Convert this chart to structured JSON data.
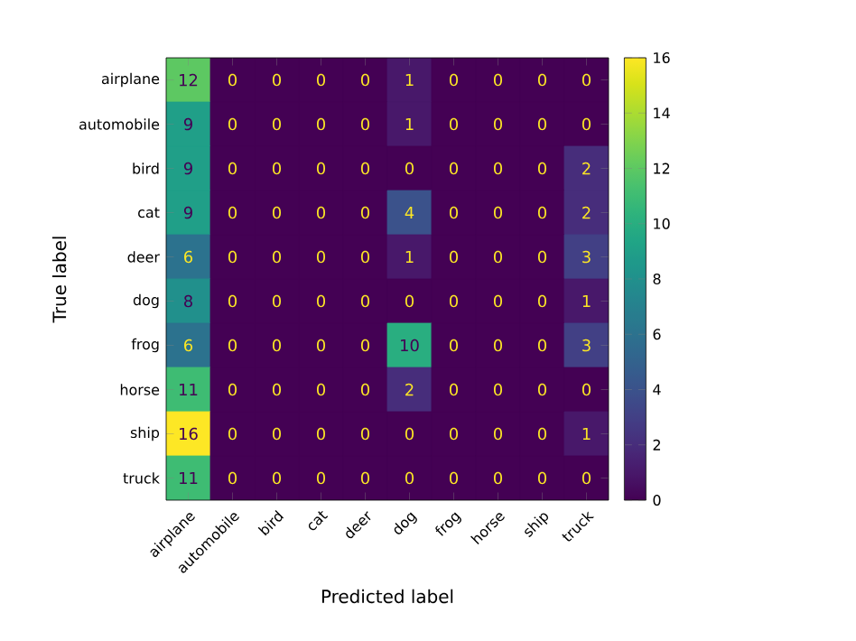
{
  "chart_data": {
    "type": "heatmap",
    "xlabel": "Predicted label",
    "ylabel": "True label",
    "categories": [
      "airplane",
      "automobile",
      "bird",
      "cat",
      "deer",
      "dog",
      "frog",
      "horse",
      "ship",
      "truck"
    ],
    "y_categories": [
      "airplane",
      "automobile",
      "bird",
      "cat",
      "deer",
      "dog",
      "frog",
      "horse",
      "ship",
      "truck"
    ],
    "cells": [
      [
        12,
        0,
        0,
        0,
        0,
        1,
        0,
        0,
        0,
        0
      ],
      [
        9,
        0,
        0,
        0,
        0,
        1,
        0,
        0,
        0,
        0
      ],
      [
        9,
        0,
        0,
        0,
        0,
        0,
        0,
        0,
        0,
        2
      ],
      [
        9,
        0,
        0,
        0,
        0,
        4,
        0,
        0,
        0,
        2
      ],
      [
        6,
        0,
        0,
        0,
        0,
        1,
        0,
        0,
        0,
        3
      ],
      [
        8,
        0,
        0,
        0,
        0,
        0,
        0,
        0,
        0,
        1
      ],
      [
        6,
        0,
        0,
        0,
        0,
        10,
        0,
        0,
        0,
        3
      ],
      [
        11,
        0,
        0,
        0,
        0,
        2,
        0,
        0,
        0,
        0
      ],
      [
        16,
        0,
        0,
        0,
        0,
        0,
        0,
        0,
        0,
        1
      ],
      [
        11,
        0,
        0,
        0,
        0,
        0,
        0,
        0,
        0,
        0
      ]
    ],
    "clim": [
      0,
      16
    ],
    "cticks": [
      0,
      2,
      4,
      6,
      8,
      10,
      12,
      14,
      16
    ],
    "data_labels": true
  }
}
